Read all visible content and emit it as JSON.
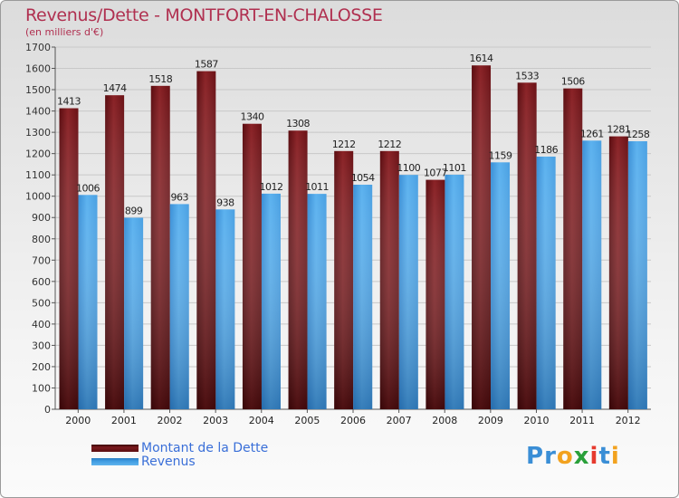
{
  "header": {
    "title": "Revenus/Dette - MONTFORT-EN-CHALOSSE",
    "subtitle": "(en milliers d'€)"
  },
  "legend": {
    "items": [
      {
        "label": "Montant de la Dette",
        "color": "#7b1a1e"
      },
      {
        "label": "Revenus",
        "color": "#3f9be0"
      }
    ]
  },
  "logo": {
    "text": "Proxiti",
    "letters": [
      {
        "char": "P",
        "color": "#3a8ed6"
      },
      {
        "char": "r",
        "color": "#3a8ed6"
      },
      {
        "char": "o",
        "color": "#f2a21f"
      },
      {
        "char": "x",
        "color": "#2aa03a"
      },
      {
        "char": "i",
        "color": "#e63a2e"
      },
      {
        "char": "t",
        "color": "#3a8ed6"
      },
      {
        "char": "i",
        "color": "#f2a21f"
      }
    ]
  },
  "chart_data": {
    "type": "bar",
    "title": "Revenus/Dette - MONTFORT-EN-CHALOSSE",
    "subtitle": "(en milliers d'€)",
    "categories": [
      "2000",
      "2001",
      "2002",
      "2003",
      "2004",
      "2005",
      "2006",
      "2007",
      "2008",
      "2009",
      "2010",
      "2011",
      "2012"
    ],
    "series": [
      {
        "name": "Montant de la Dette",
        "color": "#7b1a1e",
        "values": [
          1413,
          1474,
          1518,
          1587,
          1340,
          1308,
          1212,
          1212,
          1077,
          1614,
          1533,
          1506,
          1281
        ]
      },
      {
        "name": "Revenus",
        "color": "#3f9be0",
        "values": [
          1006,
          899,
          963,
          938,
          1012,
          1011,
          1054,
          1100,
          1101,
          1159,
          1186,
          1261,
          1258
        ]
      }
    ],
    "ylim": [
      0,
      1700
    ],
    "ytick_step": 100,
    "grid": true,
    "legend_position": "bottom-left"
  }
}
